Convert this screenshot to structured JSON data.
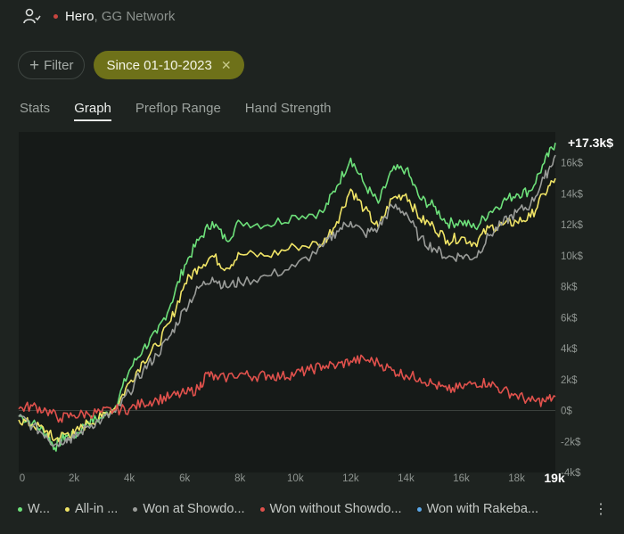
{
  "header": {
    "player": "Hero",
    "network": ", GG Network"
  },
  "filters": {
    "add_label": "Filter",
    "active_label": "Since 01-10-2023"
  },
  "tabs": [
    "Stats",
    "Graph",
    "Preflop Range",
    "Hand Strength"
  ],
  "active_tab": 1,
  "legend": [
    {
      "label": "W...",
      "color": "#6de07a"
    },
    {
      "label": "All-in ...",
      "color": "#f0e466"
    },
    {
      "label": "Won at Showdo...",
      "color": "#9a9c99"
    },
    {
      "label": "Won without Showdo...",
      "color": "#e0514c"
    },
    {
      "label": "Won with Rakeba...",
      "color": "#5aa7e8"
    }
  ],
  "chart_data": {
    "type": "line",
    "xlabel": "",
    "ylabel": "",
    "xlim": [
      0,
      19400
    ],
    "ylim": [
      -4000,
      18000
    ],
    "x_ticks": [
      "0",
      "2k",
      "4k",
      "6k",
      "8k",
      "10k",
      "12k",
      "14k",
      "16k",
      "18k"
    ],
    "x_ticks_values": [
      0,
      2000,
      4000,
      6000,
      8000,
      10000,
      12000,
      14000,
      16000,
      18000
    ],
    "x_end_label": "19k",
    "y_ticks": [
      "-4k$",
      "-2k$",
      "0$",
      "2k$",
      "4k$",
      "6k$",
      "8k$",
      "10k$",
      "12k$",
      "14k$",
      "16k$"
    ],
    "y_ticks_values": [
      -4000,
      -2000,
      0,
      2000,
      4000,
      6000,
      8000,
      10000,
      12000,
      14000,
      16000
    ],
    "final_value_label": "+17.3k$",
    "grid": "horizontal zero line only",
    "series": [
      {
        "color": "#6de07a",
        "x": [
          0,
          500,
          1000,
          1300,
          1700,
          2000,
          2500,
          3000,
          3500,
          4000,
          4500,
          5000,
          5500,
          6000,
          6500,
          7000,
          7500,
          8000,
          9000,
          10000,
          11000,
          11500,
          12000,
          12500,
          13000,
          13500,
          14000,
          14500,
          15000,
          15500,
          16000,
          16500,
          17000,
          17500,
          18000,
          18500,
          19000,
          19400
        ],
        "y": [
          -300,
          -800,
          -1500,
          -2400,
          -1600,
          -1700,
          -700,
          -500,
          300,
          2600,
          4000,
          5000,
          6900,
          9400,
          11000,
          12200,
          11000,
          12200,
          12000,
          12600,
          12800,
          14500,
          16300,
          14600,
          13400,
          15500,
          15600,
          13700,
          13200,
          12100,
          12200,
          11800,
          12800,
          13500,
          14000,
          14200,
          16000,
          17300
        ]
      },
      {
        "color": "#f0e466",
        "x": [
          0,
          500,
          1000,
          1300,
          1700,
          2000,
          2500,
          3000,
          3500,
          4000,
          4500,
          5000,
          5500,
          6000,
          6500,
          7000,
          7500,
          8000,
          9000,
          10000,
          11000,
          11500,
          12000,
          12500,
          13000,
          13500,
          14000,
          14500,
          15000,
          15500,
          16000,
          16500,
          17000,
          17500,
          18000,
          18500,
          19000,
          19400
        ],
        "y": [
          -600,
          -900,
          -1300,
          -1900,
          -1500,
          -1500,
          -800,
          -400,
          200,
          1800,
          3200,
          4200,
          5800,
          8200,
          9300,
          10000,
          9200,
          10100,
          10000,
          10600,
          10800,
          12200,
          14300,
          13000,
          11800,
          13700,
          14000,
          12400,
          11900,
          11000,
          11200,
          10800,
          11800,
          12000,
          12200,
          12500,
          14000,
          15000
        ]
      },
      {
        "color": "#9a9c99",
        "x": [
          0,
          500,
          1000,
          1300,
          1700,
          2000,
          2500,
          3000,
          3500,
          4000,
          4500,
          5000,
          5500,
          6000,
          6500,
          7000,
          7500,
          8000,
          9000,
          10000,
          11000,
          11500,
          12000,
          12500,
          13000,
          13500,
          14000,
          14500,
          15000,
          15500,
          16000,
          16500,
          17000,
          17500,
          18000,
          18500,
          19000,
          19400
        ],
        "y": [
          -400,
          -1000,
          -1600,
          -2200,
          -1800,
          -1800,
          -1000,
          -600,
          -100,
          1200,
          2600,
          3600,
          4900,
          6600,
          7900,
          8600,
          8000,
          8300,
          8700,
          9300,
          10600,
          11600,
          12200,
          11400,
          11800,
          13200,
          12800,
          11100,
          10500,
          9900,
          10000,
          9900,
          11300,
          12100,
          12800,
          13300,
          15000,
          16500
        ]
      },
      {
        "color": "#e0514c",
        "x": [
          0,
          500,
          1000,
          1500,
          2000,
          2500,
          3000,
          3500,
          4000,
          4500,
          5000,
          5500,
          6000,
          6500,
          6800,
          7200,
          8000,
          8500,
          9000,
          9500,
          10000,
          10500,
          11000,
          11500,
          12000,
          12500,
          13000,
          13500,
          14000,
          14500,
          15000,
          15500,
          16000,
          16500,
          17000,
          17500,
          18000,
          18500,
          19000,
          19400
        ],
        "y": [
          100,
          300,
          0,
          -500,
          -300,
          -200,
          -100,
          50,
          100,
          500,
          700,
          900,
          1100,
          1400,
          2400,
          2000,
          2400,
          2200,
          2300,
          2200,
          2400,
          2600,
          2900,
          2900,
          3200,
          3300,
          3100,
          2600,
          2300,
          2100,
          1700,
          1300,
          1500,
          1800,
          1800,
          1300,
          1000,
          600,
          600,
          900
        ]
      }
    ]
  }
}
